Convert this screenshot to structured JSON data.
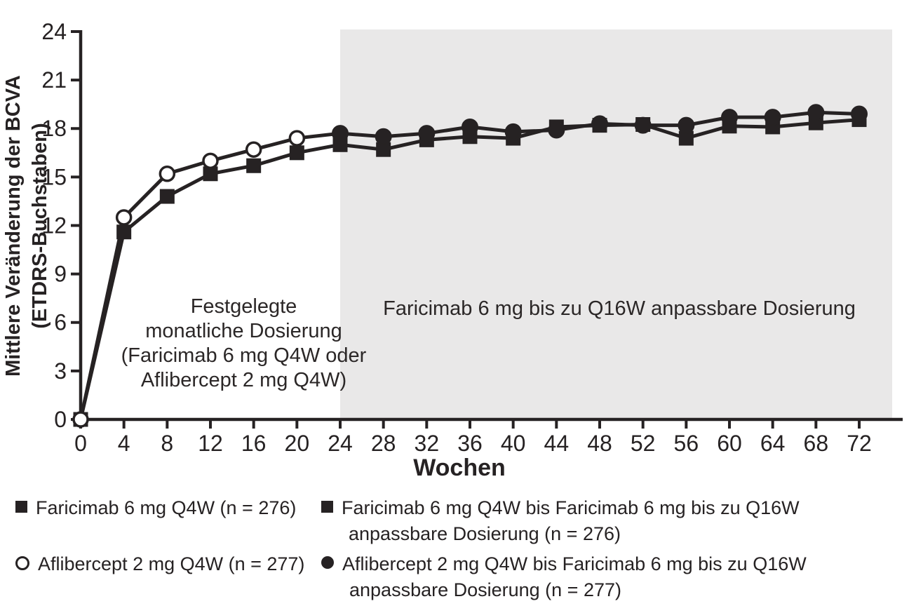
{
  "colors": {
    "ink": "#262223",
    "shade": "#e9e8e8",
    "background": "#ffffff"
  },
  "y_axis": {
    "title_line1": "Mittlere Veränderung der BCVA",
    "title_line2": "(ETDRS-Buchstaben)",
    "ticks": [
      0,
      3,
      6,
      9,
      12,
      15,
      18,
      21,
      24
    ]
  },
  "x_axis": {
    "title": "Wochen",
    "ticks": [
      0,
      4,
      8,
      12,
      16,
      20,
      24,
      28,
      32,
      36,
      40,
      44,
      48,
      52,
      56,
      60,
      64,
      68,
      72
    ]
  },
  "annotations": {
    "fixed_dosing": "Festgelegte\nmonatliche Dosierung\n(Faricimab 6 mg Q4W oder\nAflibercept 2 mg Q4W)",
    "adjustable_dosing": "Faricimab 6 mg bis zu Q16W anpassbare Dosierung"
  },
  "legend": {
    "left": [
      {
        "glyph": "filled-square",
        "label": "Faricimab 6 mg Q4W (n = 276)"
      },
      {
        "glyph": "open-circle",
        "label": "Aflibercept 2 mg Q4W (n = 277)"
      }
    ],
    "right": [
      {
        "glyph": "filled-square",
        "line1": "Faricimab 6 mg Q4W bis Faricimab 6 mg bis zu Q16W",
        "line2": "anpassbare Dosierung (n = 276)"
      },
      {
        "glyph": "filled-circle",
        "line1": "Aflibercept 2 mg Q4W bis Faricimab 6 mg bis zu Q16W",
        "line2": "anpassbare Dosierung (n = 277)"
      }
    ]
  },
  "chart_data": {
    "type": "line",
    "x": [
      0,
      4,
      8,
      12,
      16,
      20,
      24,
      28,
      32,
      36,
      40,
      44,
      48,
      52,
      56,
      60,
      64,
      68,
      72
    ],
    "xlabel": "Wochen",
    "ylabel": "Mittlere Veränderung der BCVA (ETDRS-Buchstaben)",
    "xlim": [
      0,
      76
    ],
    "ylim": [
      0,
      24
    ],
    "yticks": [
      0,
      3,
      6,
      9,
      12,
      15,
      18,
      21,
      24
    ],
    "grid": false,
    "legend_position": "bottom",
    "shaded_region": {
      "from_week": 24,
      "to_week": 75,
      "label": "Faricimab 6 mg bis zu Q16W anpassbare Dosierung"
    },
    "fixed_phase_label": "Festgelegte monatliche Dosierung (Faricimab 6 mg Q4W oder Aflibercept 2 mg Q4W)",
    "series": [
      {
        "name": "Faricimab 6 mg Q4W bis Faricimab 6 mg bis zu Q16W anpassbare Dosierung",
        "n": 276,
        "marker": "square",
        "marker_fill": "filled",
        "values": [
          0,
          11.6,
          13.8,
          15.2,
          15.7,
          16.5,
          17.0,
          16.7,
          17.3,
          17.5,
          17.4,
          18.1,
          18.2,
          18.25,
          17.4,
          18.15,
          18.1,
          18.35,
          18.55
        ]
      },
      {
        "name": "Aflibercept 2 mg Q4W bis Faricimab 6 mg bis zu Q16W anpassbare Dosierung",
        "n": 277,
        "marker": "circle",
        "open_marker_until_week": 20,
        "filled_marker_from_week": 24,
        "values": [
          0,
          12.5,
          15.2,
          16.0,
          16.7,
          17.4,
          17.7,
          17.5,
          17.7,
          18.1,
          17.8,
          17.9,
          18.3,
          18.2,
          18.2,
          18.7,
          18.7,
          19.0,
          18.9
        ]
      }
    ]
  }
}
